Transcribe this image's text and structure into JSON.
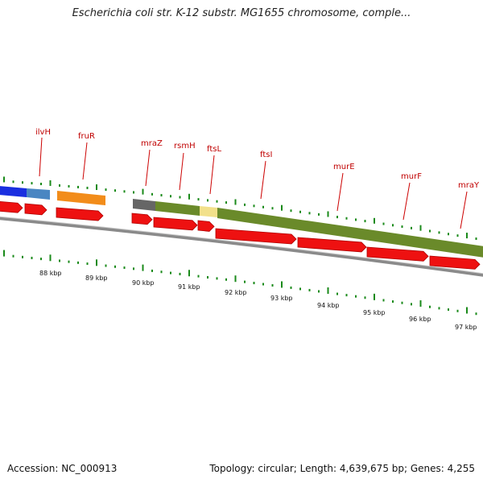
{
  "title": "Escherichia coli str. K-12 substr. MG1655 chromosome, comple...",
  "footer": {
    "accession": "Accession: NC_000913",
    "summary": "Topology: circular; Length: 4,639,675 bp; Genes: 4,255"
  },
  "colors": {
    "gene_label": "#c00000",
    "cds_arrow": "#ee1111",
    "tick": "#1a8a1a",
    "backbone": "#777777"
  },
  "gene_labels": [
    "ilvH",
    "fruR",
    "mraZ",
    "rsmH",
    "ftsL",
    "ftsI",
    "murE",
    "murF",
    "mraY"
  ],
  "scale_labels": [
    "88 kbp",
    "89 kbp",
    "90 kbp",
    "91 kbp",
    "92 kbp",
    "93 kbp",
    "94 kbp",
    "95 kbp",
    "96 kbp",
    "97 kbp"
  ]
}
